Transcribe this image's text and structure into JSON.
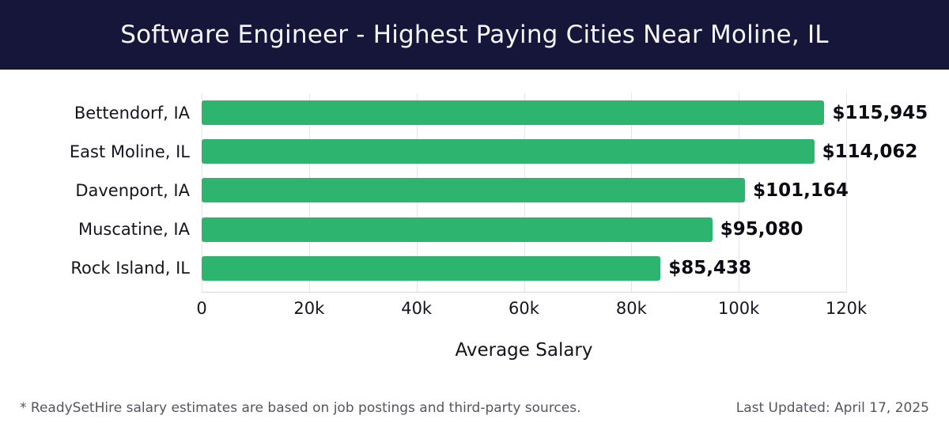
{
  "header": {
    "title": "Software Engineer - Highest Paying Cities Near Moline, IL"
  },
  "chart_data": {
    "type": "bar",
    "orientation": "horizontal",
    "title": "Software Engineer - Highest Paying Cities Near Moline, IL",
    "categories": [
      "Bettendorf, IA",
      "East Moline, IL",
      "Davenport, IA",
      "Muscatine, IA",
      "Rock Island, IL"
    ],
    "values": [
      115945,
      114062,
      101164,
      95080,
      85438
    ],
    "value_labels": [
      "$115,945",
      "$114,062",
      "$101,164",
      "$95,080",
      "$85,438"
    ],
    "xlabel": "Average Salary",
    "ylabel": "",
    "xlim": [
      0,
      120000
    ],
    "x_tick_values": [
      0,
      20000,
      40000,
      60000,
      80000,
      100000,
      120000
    ],
    "x_tick_labels": [
      "0",
      "20k",
      "40k",
      "60k",
      "80k",
      "100k",
      "120k"
    ],
    "grid": true,
    "legend": false,
    "bar_color": "#2db46e"
  },
  "colors": {
    "header_bg": "#15163a",
    "header_text": "#f7f7fb",
    "bar": "#2db46e",
    "gridline": "#e4e4ea",
    "text": "#15151f",
    "footer_text": "#55555f"
  },
  "footer": {
    "note": "* ReadySetHire salary estimates are based on job postings and third-party sources.",
    "last_updated": "Last Updated: April 17, 2025"
  }
}
